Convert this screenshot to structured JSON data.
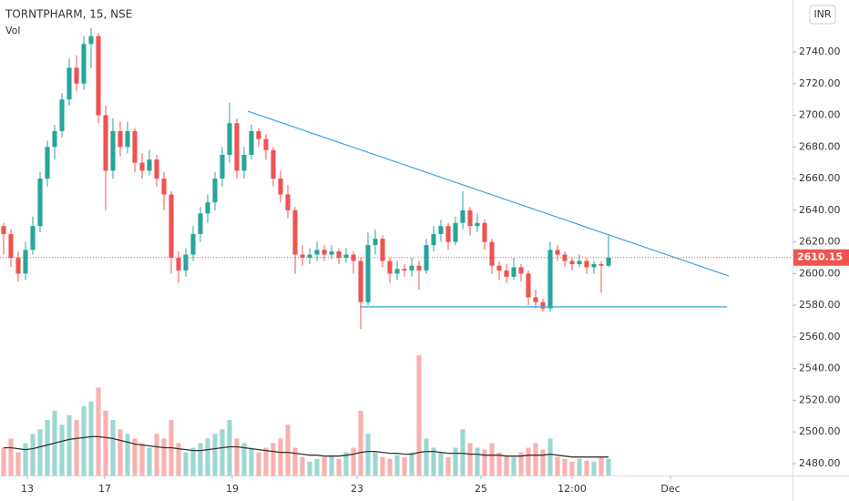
{
  "chart_data": {
    "type": "candlestick",
    "title": "TORNTPHARM, 15, NSE",
    "volume_label": "Vol",
    "currency_button": "INR",
    "up_color": "#26a69a",
    "down_color": "#ef5350",
    "ma_color": "#333333",
    "xlim": [
      -0.5,
      108.25
    ],
    "ylim": [
      2472.5,
      2772.8
    ],
    "xticks": [
      {
        "value": 3.25,
        "label": "13"
      },
      {
        "value": 13.875,
        "label": "17"
      },
      {
        "value": 31.375,
        "label": "19"
      },
      {
        "value": 48.5,
        "label": "23"
      },
      {
        "value": 65.5,
        "label": "25"
      },
      {
        "value": 78,
        "label": "12:00"
      },
      {
        "value": 91.5,
        "label": "Dec"
      }
    ],
    "yticks": [
      {
        "value": 2480,
        "label": "2480.00"
      },
      {
        "value": 2500,
        "label": "2500.00"
      },
      {
        "value": 2520,
        "label": "2520.00"
      },
      {
        "value": 2540,
        "label": "2540.00"
      },
      {
        "value": 2560,
        "label": "2560.00"
      },
      {
        "value": 2580,
        "label": "2580.00"
      },
      {
        "value": 2600,
        "label": "2600.00"
      },
      {
        "value": 2620,
        "label": "2620.00"
      },
      {
        "value": 2640,
        "label": "2640.00"
      },
      {
        "value": 2660,
        "label": "2660.00"
      },
      {
        "value": 2680,
        "label": "2680.00"
      },
      {
        "value": 2700,
        "label": "2700.00"
      },
      {
        "value": 2720,
        "label": "2720.00"
      },
      {
        "value": 2740,
        "label": "2740.00"
      }
    ],
    "ohlc": [
      [
        2630,
        2632,
        2612,
        2625
      ],
      [
        2625,
        2628,
        2604,
        2610
      ],
      [
        2610,
        2614,
        2595,
        2600
      ],
      [
        2600,
        2620,
        2596,
        2615
      ],
      [
        2615,
        2636,
        2612,
        2630
      ],
      [
        2630,
        2664,
        2626,
        2660
      ],
      [
        2660,
        2684,
        2655,
        2680
      ],
      [
        2680,
        2694,
        2672,
        2690
      ],
      [
        2690,
        2714,
        2686,
        2710
      ],
      [
        2710,
        2736,
        2706,
        2730
      ],
      [
        2730,
        2738,
        2715,
        2720
      ],
      [
        2720,
        2750,
        2716,
        2745
      ],
      [
        2745,
        2755,
        2730,
        2750
      ],
      [
        2750,
        2752,
        2695,
        2700
      ],
      [
        2700,
        2706,
        2640,
        2665
      ],
      [
        2665,
        2698,
        2660,
        2690
      ],
      [
        2690,
        2696,
        2674,
        2680
      ],
      [
        2680,
        2696,
        2676,
        2690
      ],
      [
        2690,
        2692,
        2664,
        2670
      ],
      [
        2670,
        2676,
        2660,
        2665
      ],
      [
        2665,
        2678,
        2662,
        2672
      ],
      [
        2672,
        2675,
        2655,
        2660
      ],
      [
        2660,
        2664,
        2640,
        2650
      ],
      [
        2650,
        2652,
        2600,
        2610
      ],
      [
        2610,
        2614,
        2594,
        2602
      ],
      [
        2602,
        2616,
        2598,
        2612
      ],
      [
        2612,
        2630,
        2608,
        2625
      ],
      [
        2625,
        2642,
        2620,
        2638
      ],
      [
        2638,
        2650,
        2632,
        2645
      ],
      [
        2645,
        2664,
        2640,
        2660
      ],
      [
        2660,
        2680,
        2655,
        2675
      ],
      [
        2675,
        2708,
        2670,
        2695
      ],
      [
        2695,
        2698,
        2660,
        2665
      ],
      [
        2665,
        2680,
        2660,
        2675
      ],
      [
        2675,
        2694,
        2672,
        2690
      ],
      [
        2690,
        2692,
        2680,
        2685
      ],
      [
        2685,
        2688,
        2672,
        2678
      ],
      [
        2678,
        2680,
        2655,
        2660
      ],
      [
        2660,
        2665,
        2645,
        2650
      ],
      [
        2650,
        2656,
        2635,
        2640
      ],
      [
        2640,
        2642,
        2600,
        2612
      ],
      [
        2612,
        2618,
        2605,
        2610
      ],
      [
        2610,
        2616,
        2606,
        2612
      ],
      [
        2612,
        2620,
        2608,
        2615
      ],
      [
        2615,
        2618,
        2608,
        2612
      ],
      [
        2612,
        2618,
        2609,
        2614
      ],
      [
        2614,
        2616,
        2606,
        2610
      ],
      [
        2610,
        2616,
        2607,
        2612
      ],
      [
        2612,
        2614,
        2600,
        2608
      ],
      [
        2608,
        2610,
        2565,
        2582
      ],
      [
        2582,
        2626,
        2580,
        2618
      ],
      [
        2618,
        2628,
        2612,
        2622
      ],
      [
        2622,
        2624,
        2604,
        2608
      ],
      [
        2608,
        2610,
        2594,
        2600
      ],
      [
        2600,
        2608,
        2596,
        2603
      ],
      [
        2603,
        2606,
        2598,
        2602
      ],
      [
        2602,
        2610,
        2598,
        2605
      ],
      [
        2605,
        2608,
        2590,
        2602
      ],
      [
        2602,
        2622,
        2600,
        2618
      ],
      [
        2618,
        2630,
        2614,
        2625
      ],
      [
        2625,
        2634,
        2620,
        2630
      ],
      [
        2630,
        2632,
        2615,
        2620
      ],
      [
        2620,
        2636,
        2618,
        2632
      ],
      [
        2632,
        2652,
        2628,
        2640
      ],
      [
        2640,
        2642,
        2624,
        2630
      ],
      [
        2630,
        2638,
        2626,
        2632
      ],
      [
        2632,
        2634,
        2615,
        2620
      ],
      [
        2620,
        2622,
        2600,
        2605
      ],
      [
        2605,
        2608,
        2596,
        2602
      ],
      [
        2602,
        2606,
        2594,
        2598
      ],
      [
        2598,
        2610,
        2596,
        2604
      ],
      [
        2604,
        2606,
        2595,
        2600
      ],
      [
        2600,
        2602,
        2580,
        2585
      ],
      [
        2585,
        2590,
        2578,
        2582
      ],
      [
        2582,
        2584,
        2576,
        2578
      ],
      [
        2578,
        2620,
        2576,
        2615
      ],
      [
        2615,
        2618,
        2608,
        2612
      ],
      [
        2612,
        2614,
        2604,
        2608
      ],
      [
        2608,
        2610,
        2602,
        2606
      ],
      [
        2606,
        2612,
        2604,
        2608
      ],
      [
        2608,
        2610,
        2600,
        2604
      ],
      [
        2604,
        2608,
        2600,
        2606
      ],
      [
        2606,
        2608,
        2588,
        2605
      ],
      [
        2605,
        2624,
        2604,
        2610.15
      ]
    ],
    "volume": [
      30,
      40,
      25,
      35,
      45,
      50,
      60,
      70,
      55,
      65,
      60,
      75,
      80,
      95,
      70,
      60,
      50,
      45,
      40,
      35,
      30,
      45,
      40,
      60,
      35,
      25,
      30,
      35,
      40,
      45,
      50,
      60,
      40,
      35,
      30,
      25,
      30,
      35,
      40,
      55,
      30,
      20,
      15,
      18,
      20,
      22,
      18,
      25,
      30,
      70,
      45,
      25,
      20,
      18,
      22,
      20,
      25,
      130,
      40,
      30,
      25,
      20,
      30,
      50,
      35,
      30,
      28,
      35,
      25,
      22,
      20,
      25,
      30,
      35,
      28,
      40,
      20,
      18,
      15,
      18,
      16,
      15,
      20,
      18
    ],
    "volume_ma": [
      30,
      30,
      29,
      28,
      29,
      31,
      33,
      35,
      37,
      39,
      40,
      41,
      42,
      42,
      41,
      40,
      38,
      36,
      34,
      33,
      32,
      31,
      30,
      30,
      29,
      28,
      27,
      27,
      28,
      29,
      30,
      31,
      31,
      30,
      29,
      28,
      27,
      26,
      25,
      25,
      24,
      23,
      22,
      22,
      21,
      21,
      21,
      22,
      23,
      25,
      26,
      26,
      25,
      24,
      24,
      23,
      23,
      25,
      26,
      26,
      25,
      24,
      24,
      24,
      23,
      23,
      22,
      22,
      22,
      21,
      21,
      21,
      22,
      22,
      22,
      23,
      22,
      21,
      20,
      20,
      20,
      20,
      20,
      20
    ],
    "trend_lines": [
      {
        "x": [
          33.5,
          99.5
        ],
        "y": [
          2702.6,
          2598.5
        ],
        "color": "#3ea1e0"
      },
      {
        "x": [
          48.9,
          99.25
        ],
        "y": [
          2579,
          2579
        ],
        "color": "#3ea1e0"
      }
    ]
  }
}
